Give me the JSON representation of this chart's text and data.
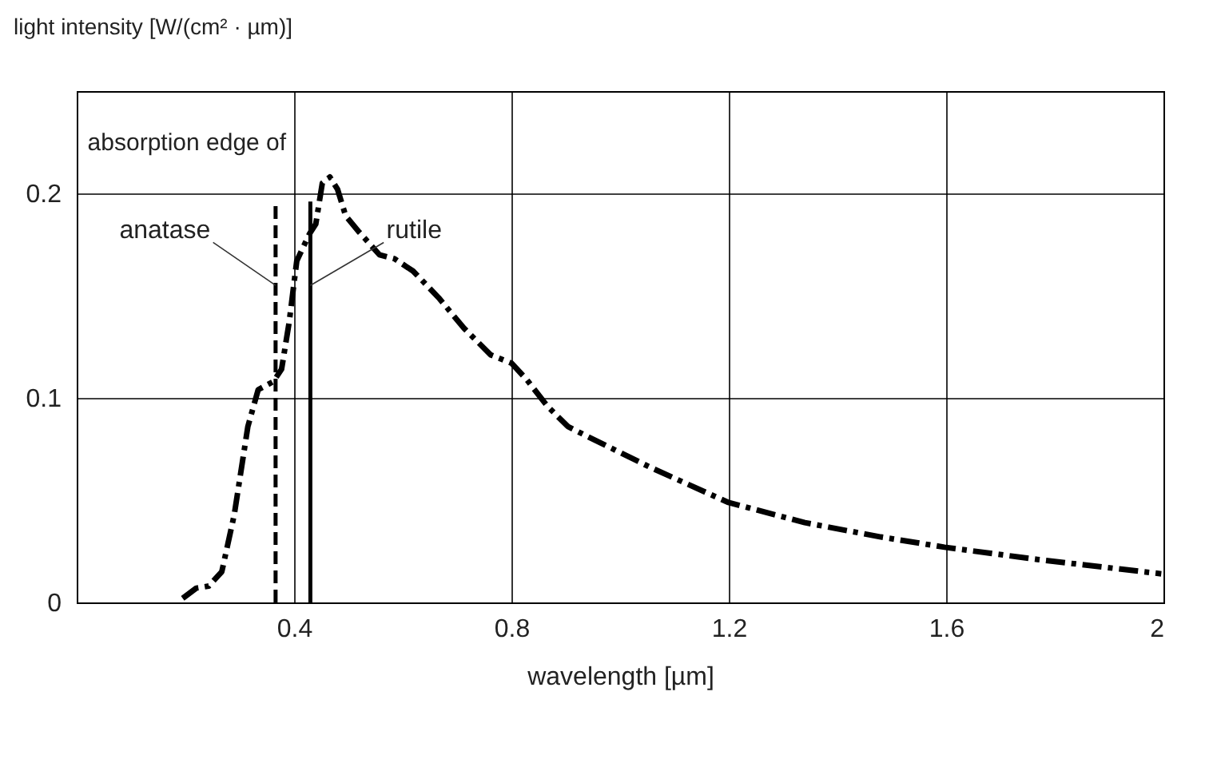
{
  "chart_data": {
    "type": "line",
    "xlabel": "wavelength [µm]",
    "ylabel": "light intensity [W/(cm² · µm)]",
    "xlim": [
      0,
      2
    ],
    "ylim": [
      0,
      0.25
    ],
    "xticks": [
      0.4,
      0.8,
      1.2,
      1.6,
      2
    ],
    "yticks": [
      0,
      0.1,
      0.2
    ],
    "grid": true,
    "annotations": [
      "absorption edge of"
    ],
    "series": [
      {
        "color": "#000000",
        "line_style": "dashdot",
        "x": [
          0.195,
          0.22,
          0.243,
          0.267,
          0.29,
          0.315,
          0.334,
          0.362,
          0.377,
          0.391,
          0.405,
          0.428,
          0.44,
          0.452,
          0.466,
          0.48,
          0.495,
          0.52,
          0.537,
          0.557,
          0.585,
          0.619,
          0.666,
          0.713,
          0.762,
          0.8,
          0.828,
          0.866,
          0.904,
          0.941,
          1.056,
          1.198,
          1.34,
          1.48,
          1.597,
          1.768,
          1.996
        ],
        "values": [
          0.002,
          0.007,
          0.008,
          0.015,
          0.043,
          0.086,
          0.104,
          0.108,
          0.114,
          0.137,
          0.167,
          0.18,
          0.185,
          0.205,
          0.208,
          0.202,
          0.189,
          0.181,
          0.176,
          0.17,
          0.168,
          0.162,
          0.149,
          0.134,
          0.121,
          0.117,
          0.109,
          0.096,
          0.086,
          0.081,
          0.066,
          0.049,
          0.039,
          0.032,
          0.027,
          0.021,
          0.014
        ]
      },
      {
        "name": "anatase",
        "color": "#000000",
        "line_style": "dashed",
        "x": [
          0.366,
          0.366
        ],
        "values": [
          0,
          0.196
        ]
      },
      {
        "name": "rutile",
        "color": "#000000",
        "line_style": "solid",
        "x": [
          0.43,
          0.43
        ],
        "values": [
          0,
          0.196
        ]
      }
    ]
  }
}
